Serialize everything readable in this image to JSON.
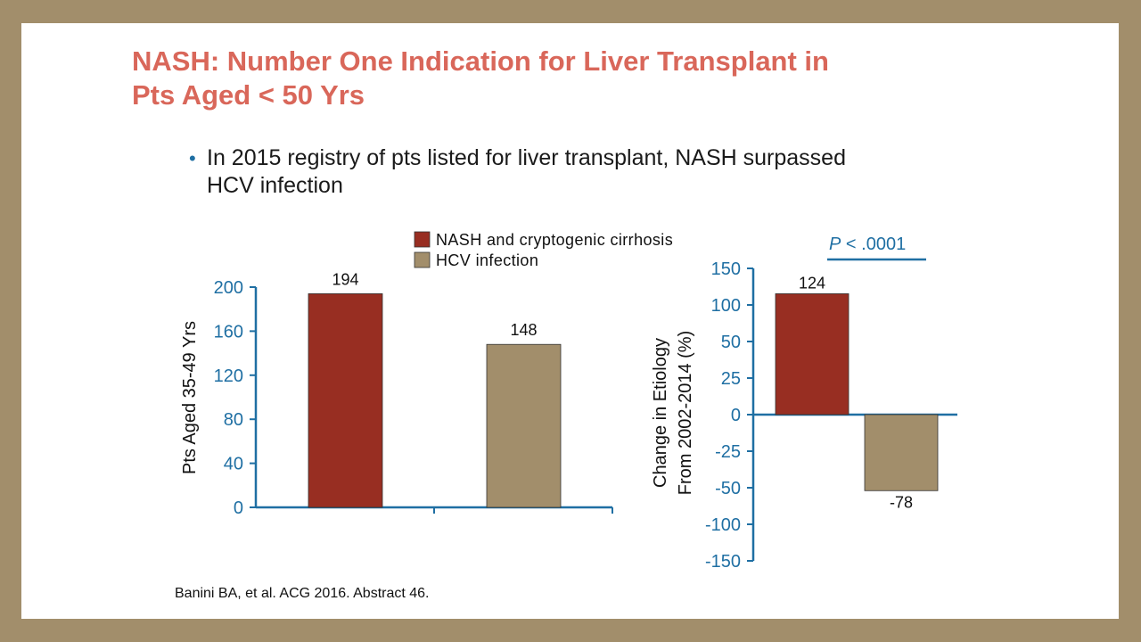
{
  "slide": {
    "title_line1": "NASH: Number One Indication for Liver Transplant in",
    "title_line2": "Pts Aged < 50 Yrs",
    "bullet_line1": "In 2015 registry of pts listed for liver transplant, NASH surpassed",
    "bullet_line2": "HCV infection",
    "citation": "Banini BA, et al. ACG 2016. Abstract 46."
  },
  "colors": {
    "nash": "#982e22",
    "hcv": "#a28e6b",
    "axis": "#1f6fa3",
    "title": "#d9675a"
  },
  "legend": [
    {
      "label": "NASH and cryptogenic cirrhosis",
      "color": "#982e22"
    },
    {
      "label": "HCV infection",
      "color": "#a28e6b"
    }
  ],
  "chart_data": [
    {
      "type": "bar",
      "categories": [
        "NASH and cryptogenic cirrhosis",
        "HCV infection"
      ],
      "values": [
        194,
        148
      ],
      "data_labels": [
        "194",
        "148"
      ],
      "ylabel": "Pts Aged 35-49 Yrs",
      "ylim": [
        0,
        200
      ],
      "yticks": [
        0,
        40,
        80,
        120,
        160,
        200
      ],
      "grid": false
    },
    {
      "type": "bar",
      "categories": [
        "NASH and cryptogenic cirrhosis",
        "HCV infection"
      ],
      "values": [
        124,
        -78
      ],
      "data_labels": [
        "124",
        "-78"
      ],
      "ylabel_line1": "Change in Etiology",
      "ylabel_line2": "From 2002-2014 (%)",
      "ylim": [
        -150,
        150
      ],
      "yticks": [
        -150,
        -100,
        -50,
        -25,
        0,
        25,
        50,
        100,
        150
      ],
      "grid": false,
      "annotation_p": "P",
      "annotation_value": " < .0001"
    }
  ]
}
